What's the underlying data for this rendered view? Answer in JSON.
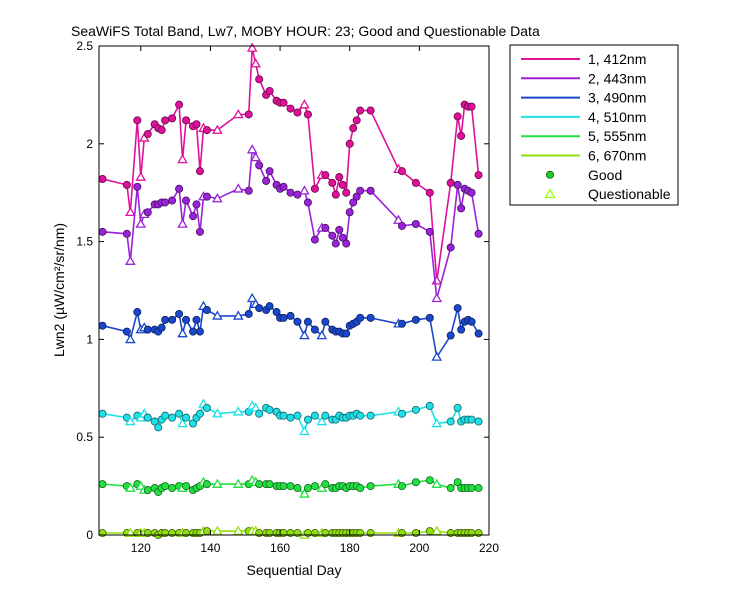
{
  "chart_data": {
    "type": "line",
    "title": "SeaWiFS Total Band, Lw7, MOBY HOUR: 23;  Good and Questionable Data",
    "xlabel": "Sequential Day",
    "ylabel": "Lwn2 (µW/cm²/sr/nm)",
    "xlim": [
      108,
      220
    ],
    "ylim": [
      0,
      2.5
    ],
    "xticks": [
      120,
      140,
      160,
      180,
      200,
      220
    ],
    "xtick_labels": [
      "120",
      "140",
      "160",
      "180",
      "200",
      "220"
    ],
    "yticks": [
      0,
      0.5,
      1,
      1.5,
      2,
      2.5
    ],
    "ytick_labels": [
      "0",
      "0.5",
      "1",
      "1.5",
      "2",
      "2.5"
    ],
    "grid": false,
    "legend_position": "outside-top-right",
    "x": [
      109,
      116,
      117,
      119,
      120,
      121,
      122,
      124,
      125,
      126,
      127,
      129,
      131,
      132,
      133,
      135,
      136,
      137,
      138,
      139,
      142,
      148,
      151,
      152,
      153,
      154,
      156,
      157,
      159,
      160,
      161,
      163,
      165,
      167,
      168,
      170,
      172,
      173,
      175,
      176,
      177,
      178,
      179,
      180,
      181,
      182,
      183,
      186,
      194,
      195,
      199,
      203,
      205,
      209,
      211,
      212,
      213,
      214,
      215,
      217
    ],
    "series": [
      {
        "name": "1, 412nm",
        "color": "#e0109a",
        "values": [
          1.82,
          1.79,
          1.65,
          2.12,
          1.83,
          2.03,
          2.05,
          2.1,
          2.08,
          2.07,
          2.12,
          2.13,
          2.2,
          1.92,
          2.12,
          2.09,
          2.1,
          1.86,
          2.08,
          2.07,
          2.07,
          2.15,
          2.15,
          2.49,
          2.41,
          2.33,
          2.25,
          2.27,
          2.22,
          2.21,
          2.21,
          2.18,
          2.16,
          2.2,
          2.15,
          1.77,
          1.84,
          1.84,
          1.8,
          1.74,
          1.83,
          1.79,
          1.75,
          2.0,
          2.08,
          2.12,
          2.17,
          2.17,
          1.87,
          1.86,
          1.8,
          1.75,
          1.3,
          1.8,
          2.14,
          2.04,
          2.2,
          2.19,
          2.19,
          1.84
        ]
      },
      {
        "name": "2, 443nm",
        "color": "#9a22d8",
        "values": [
          1.55,
          1.54,
          1.4,
          1.78,
          1.59,
          1.64,
          1.65,
          1.69,
          1.69,
          1.7,
          1.7,
          1.71,
          1.77,
          1.59,
          1.71,
          1.63,
          1.69,
          1.55,
          1.73,
          1.73,
          1.72,
          1.77,
          1.76,
          1.97,
          1.93,
          1.89,
          1.81,
          1.86,
          1.79,
          1.77,
          1.78,
          1.75,
          1.74,
          1.76,
          1.7,
          1.51,
          1.57,
          1.57,
          1.53,
          1.49,
          1.56,
          1.52,
          1.49,
          1.65,
          1.7,
          1.73,
          1.76,
          1.76,
          1.61,
          1.58,
          1.59,
          1.55,
          1.21,
          1.47,
          1.79,
          1.67,
          1.77,
          1.76,
          1.75,
          1.54
        ]
      },
      {
        "name": "3, 490nm",
        "color": "#1a48cc",
        "values": [
          1.07,
          1.04,
          1.0,
          1.14,
          1.05,
          1.06,
          1.05,
          1.05,
          1.04,
          1.06,
          1.1,
          1.1,
          1.13,
          1.03,
          1.1,
          1.04,
          1.1,
          1.04,
          1.17,
          1.15,
          1.12,
          1.12,
          1.13,
          1.21,
          1.18,
          1.16,
          1.15,
          1.17,
          1.14,
          1.11,
          1.11,
          1.12,
          1.09,
          1.02,
          1.09,
          1.05,
          1.02,
          1.09,
          1.05,
          1.04,
          1.04,
          1.03,
          1.03,
          1.07,
          1.08,
          1.09,
          1.11,
          1.11,
          1.08,
          1.08,
          1.1,
          1.11,
          0.91,
          1.02,
          1.16,
          1.05,
          1.09,
          1.1,
          1.09,
          1.03
        ]
      },
      {
        "name": "4, 510nm",
        "color": "#1ee0e8",
        "values": [
          0.62,
          0.6,
          0.58,
          0.61,
          0.6,
          0.62,
          0.6,
          0.58,
          0.55,
          0.59,
          0.61,
          0.6,
          0.62,
          0.57,
          0.6,
          0.57,
          0.6,
          0.62,
          0.67,
          0.65,
          0.62,
          0.63,
          0.63,
          0.66,
          0.65,
          0.62,
          0.65,
          0.64,
          0.63,
          0.61,
          0.61,
          0.6,
          0.61,
          0.53,
          0.59,
          0.61,
          0.58,
          0.61,
          0.59,
          0.59,
          0.61,
          0.6,
          0.6,
          0.61,
          0.61,
          0.62,
          0.61,
          0.61,
          0.63,
          0.62,
          0.64,
          0.66,
          0.57,
          0.58,
          0.65,
          0.58,
          0.59,
          0.59,
          0.59,
          0.58
        ]
      },
      {
        "name": "5, 555nm",
        "color": "#22e040",
        "values": [
          0.26,
          0.25,
          0.24,
          0.26,
          0.25,
          0.23,
          0.23,
          0.24,
          0.22,
          0.24,
          0.25,
          0.24,
          0.25,
          0.24,
          0.25,
          0.23,
          0.24,
          0.25,
          0.27,
          0.26,
          0.26,
          0.26,
          0.26,
          0.28,
          0.27,
          0.26,
          0.26,
          0.26,
          0.25,
          0.25,
          0.25,
          0.25,
          0.24,
          0.21,
          0.24,
          0.25,
          0.24,
          0.26,
          0.24,
          0.24,
          0.25,
          0.25,
          0.24,
          0.25,
          0.25,
          0.25,
          0.24,
          0.25,
          0.26,
          0.25,
          0.27,
          0.28,
          0.26,
          0.24,
          0.27,
          0.24,
          0.24,
          0.24,
          0.24,
          0.24
        ]
      },
      {
        "name": "6, 670nm",
        "color": "#90e010",
        "values": [
          0.01,
          0.01,
          0.01,
          0.01,
          0.01,
          0.01,
          0.01,
          0.01,
          0.0,
          0.01,
          0.01,
          0.01,
          0.01,
          0.01,
          0.01,
          0.01,
          0.01,
          0.01,
          0.02,
          0.02,
          0.02,
          0.02,
          0.02,
          0.02,
          0.02,
          0.01,
          0.01,
          0.01,
          0.01,
          0.01,
          0.01,
          0.01,
          0.01,
          0.0,
          0.01,
          0.01,
          0.01,
          0.01,
          0.01,
          0.01,
          0.01,
          0.01,
          0.01,
          0.01,
          0.01,
          0.01,
          0.01,
          0.01,
          0.01,
          0.01,
          0.01,
          0.02,
          0.02,
          0.01,
          0.01,
          0.01,
          0.01,
          0.01,
          0.01,
          0.01
        ]
      }
    ],
    "quality": [
      "G",
      "G",
      "Q",
      "G",
      "Q",
      "Q",
      "G",
      "G",
      "G",
      "G",
      "G",
      "G",
      "G",
      "Q",
      "G",
      "G",
      "G",
      "G",
      "Q",
      "G",
      "Q",
      "Q",
      "G",
      "Q",
      "Q",
      "G",
      "G",
      "G",
      "G",
      "G",
      "G",
      "G",
      "G",
      "Q",
      "G",
      "G",
      "Q",
      "G",
      "G",
      "G",
      "G",
      "G",
      "G",
      "G",
      "G",
      "G",
      "G",
      "G",
      "Q",
      "G",
      "G",
      "G",
      "Q",
      "G",
      "G",
      "G",
      "G",
      "G",
      "G",
      "G"
    ],
    "marker_legend": [
      {
        "name": "Good",
        "marker": "circle",
        "color": "#22cc22"
      },
      {
        "name": "Questionable",
        "marker": "triangle",
        "color": "#99ff00"
      }
    ]
  }
}
